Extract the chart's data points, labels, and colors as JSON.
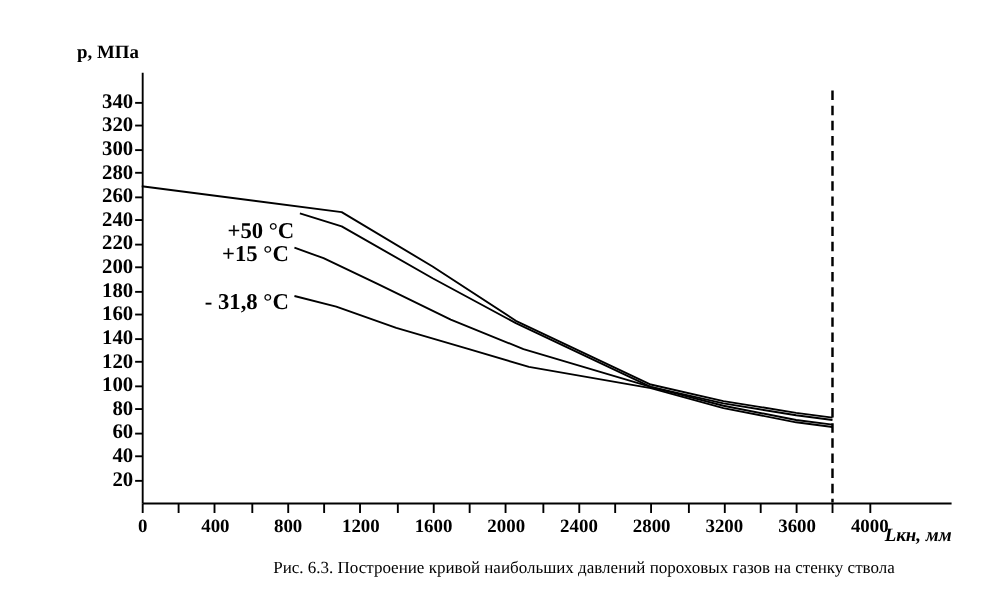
{
  "chart_data": {
    "type": "line",
    "xlabel": "Lкн, мм",
    "ylabel": "p, МПа",
    "xlim": [
      0,
      4450
    ],
    "ylim": [
      0,
      365
    ],
    "xticks": [
      0,
      {
        "value": 200,
        "label": null
      },
      400,
      {
        "value": 600,
        "label": null
      },
      800,
      {
        "value": 1000,
        "label": null
      },
      1200,
      {
        "value": 1400,
        "label": null
      },
      1600,
      {
        "value": 1800,
        "label": null
      },
      2000,
      {
        "value": 2200,
        "label": null
      },
      2400,
      {
        "value": 2600,
        "label": null
      },
      2800,
      {
        "value": 3000,
        "label": null
      },
      3200,
      {
        "value": 3400,
        "label": null
      },
      3600,
      {
        "value": 3800,
        "label": null
      },
      4000
    ],
    "yticks": [
      20,
      40,
      60,
      80,
      100,
      120,
      140,
      160,
      180,
      200,
      220,
      240,
      260,
      280,
      300,
      320,
      340
    ],
    "grid": false,
    "legend": false,
    "marker": "none",
    "line_style": "solid",
    "series": [
      {
        "color": "#000000",
        "x": [
          0,
          1100,
          1600,
          2058,
          2800,
          3200,
          3600,
          3800
        ],
        "values": [
          268,
          246,
          200,
          154,
          100,
          86,
          76,
          72
        ]
      },
      {
        "name": "+50 °C",
        "color": "#000000",
        "x": [
          870,
          1100,
          1600,
          2058,
          2800,
          3200,
          3600,
          3800
        ],
        "values": [
          245,
          234,
          190,
          152,
          98,
          84,
          74,
          70
        ]
      },
      {
        "name": "+15 °C",
        "color": "#000000",
        "x": [
          840,
          1000,
          1300,
          1700,
          2100,
          2800,
          3200,
          3600,
          3800
        ],
        "values": [
          216,
          207,
          185,
          155,
          130,
          98,
          82,
          70,
          66
        ]
      },
      {
        "name": "- 31,8 °C",
        "color": "#000000",
        "x": [
          840,
          1070,
          1400,
          1800,
          2130,
          2800,
          3200,
          3600,
          3800
        ],
        "values": [
          175,
          166,
          148,
          130,
          115,
          97,
          80,
          68,
          64
        ]
      }
    ],
    "ref_lines": [
      {
        "axis": "x",
        "value": 3800,
        "label": null,
        "color": "#000000",
        "line_style": "dashed"
      }
    ],
    "annotations": [
      "Рис. 6.3. Построение кривой наибольших давлений пороховых газов на стенку ствола"
    ]
  }
}
